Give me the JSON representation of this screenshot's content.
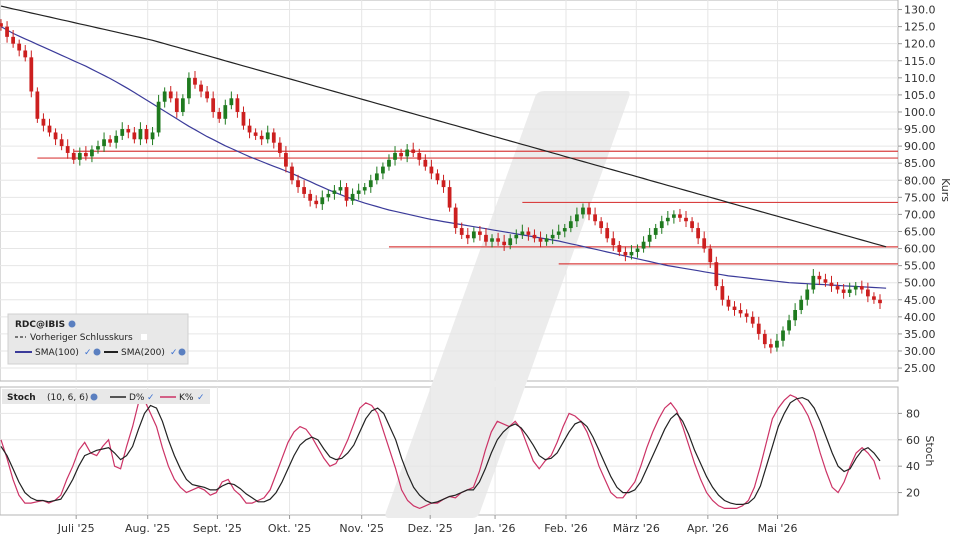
{
  "chart_data": [
    {
      "type": "candlestick",
      "ylabel": "Kurs",
      "ylim": [
        21.5,
        132.5
      ],
      "y_ticks": [
        "25.00",
        "30.00",
        "35.00",
        "40.00",
        "45.00",
        "50.00",
        "55.00",
        "60.00",
        "65.00",
        "70.00",
        "75.00",
        "80.00",
        "85.00",
        "90.00",
        "95.00",
        "100.0",
        "105.0",
        "110.0",
        "115.0",
        "120.0",
        "125.0",
        "130.0"
      ],
      "x_ticks": [
        "Juli '25",
        "Aug. '25",
        "Sept. '25",
        "Okt. '25",
        "Nov. '25",
        "Dez. '25",
        "Jan. '26",
        "Feb. '26",
        "März '26",
        "Apr. '26",
        "Mai '26"
      ],
      "x_tick_pos": [
        12.4,
        24.2,
        35.7,
        47.6,
        59.5,
        70.8,
        81.5,
        93.2,
        104.8,
        116.6,
        128.1
      ],
      "x_range": [
        0,
        145
      ],
      "grid": true,
      "colors": {
        "up": "#1f7a1f",
        "down": "#cc1f1f",
        "sma100": "#3b3b9a",
        "sma200": "#222222",
        "level": "#d94040",
        "stoch_d": "#222222",
        "stoch_k": "#cc3366"
      },
      "legend": {
        "symbol": "RDC@IBIS",
        "items": [
          "Vorheriger Schlusskurs",
          "SMA(100)",
          "SMA(200)"
        ]
      },
      "close": [
        125,
        122,
        120,
        118,
        116,
        106,
        98,
        96,
        94,
        92,
        90,
        88,
        86,
        88,
        87,
        89,
        90,
        92,
        91,
        93,
        95,
        94,
        92,
        95,
        92,
        94,
        103,
        106,
        104,
        100,
        104,
        110,
        108,
        106,
        104,
        100,
        98,
        102,
        104,
        100,
        96,
        94,
        93,
        92,
        94,
        91,
        88,
        84,
        80,
        78,
        76,
        74,
        73,
        75,
        76,
        77,
        78,
        74,
        76,
        77,
        78,
        80,
        82,
        84,
        86,
        88,
        87,
        89,
        88,
        86,
        84,
        82,
        80,
        78,
        72,
        66,
        64,
        63,
        65,
        64,
        62,
        63,
        62,
        61,
        63,
        64,
        65,
        64,
        63,
        62,
        63,
        64,
        65,
        66,
        68,
        70,
        72,
        70,
        68,
        66,
        63,
        61,
        59,
        58,
        59,
        60,
        62,
        64,
        66,
        68,
        69,
        70,
        69,
        68,
        66,
        63,
        60,
        56,
        49,
        45,
        43,
        42,
        41,
        40,
        38,
        35,
        32,
        31,
        33,
        36,
        39,
        42,
        45,
        48,
        52,
        51,
        50,
        49,
        48,
        47,
        48,
        49,
        48,
        46,
        45,
        44
      ],
      "sma100": [
        125.0,
        124.0,
        123.0,
        122.2,
        121.4,
        120.6,
        119.8,
        119.0,
        118.2,
        117.4,
        116.6,
        115.8,
        115.0,
        114.2,
        113.4,
        112.5,
        111.6,
        110.7,
        109.8,
        108.8,
        107.8,
        106.8,
        105.7,
        104.6,
        103.5,
        102.4,
        101.3,
        100.2,
        99.1,
        98.0,
        96.9,
        95.8,
        94.8,
        93.8,
        92.8,
        91.9,
        91.0,
        90.1,
        89.3,
        88.5,
        87.7,
        86.9,
        86.2,
        85.5,
        84.8,
        84.1,
        83.4,
        82.7,
        82.0,
        81.2,
        80.4,
        79.6,
        78.8,
        78.0,
        77.2,
        76.5,
        75.8,
        75.1,
        74.5,
        73.9,
        73.3,
        72.8,
        72.3,
        71.8,
        71.3,
        70.9,
        70.5,
        70.1,
        69.7,
        69.3,
        68.9,
        68.5,
        68.2,
        67.9,
        67.6,
        67.3,
        67.0,
        66.7,
        66.4,
        66.1,
        65.8,
        65.5,
        65.2,
        64.9,
        64.6,
        64.3,
        64.0,
        63.7,
        63.4,
        63.1,
        62.8,
        62.5,
        62.2,
        61.8,
        61.4,
        61.0,
        60.6,
        60.2,
        59.8,
        59.4,
        59.0,
        58.6,
        58.2,
        57.8,
        57.4,
        57.0,
        56.6,
        56.2,
        55.8,
        55.4,
        55.0,
        54.7,
        54.4,
        54.1,
        53.8,
        53.5,
        53.2,
        52.9,
        52.6,
        52.3,
        52.0,
        51.8,
        51.6,
        51.4,
        51.2,
        51.0,
        50.8,
        50.6,
        50.4,
        50.2,
        50.0,
        49.9,
        49.8,
        49.7,
        49.6,
        49.5,
        49.4,
        49.3,
        49.2,
        49.1,
        49.0,
        48.9,
        48.8,
        48.7,
        48.6,
        48.5,
        48.4
      ],
      "sma200": [
        131.0,
        130.6,
        130.2,
        129.8,
        129.4,
        129.0,
        128.6,
        128.2,
        127.8,
        127.4,
        127.0,
        126.6,
        126.2,
        125.8,
        125.4,
        125.0,
        124.6,
        124.2,
        123.8,
        123.4,
        123.0,
        122.6,
        122.2,
        121.8,
        121.4,
        121.0,
        120.5,
        120.0,
        119.5,
        119.0,
        118.5,
        118.0,
        117.5,
        117.0,
        116.5,
        116.0,
        115.5,
        115.0,
        114.5,
        114.0,
        113.5,
        113.0,
        112.5,
        112.0,
        111.5,
        111.0,
        110.5,
        110.0,
        109.5,
        109.0,
        108.5,
        108.0,
        107.5,
        107.0,
        106.5,
        106.0,
        105.5,
        105.0,
        104.5,
        104.0,
        103.5,
        103.0,
        102.5,
        102.0,
        101.5,
        101.0,
        100.5,
        100.0,
        99.5,
        99.0,
        98.5,
        98.0,
        97.5,
        97.0,
        96.5,
        96.0,
        95.5,
        95.0,
        94.5,
        94.0,
        93.5,
        93.0,
        92.5,
        92.0,
        91.5,
        91.0,
        90.5,
        90.0,
        89.5,
        89.0,
        88.5,
        88.0,
        87.5,
        87.0,
        86.5,
        86.0,
        85.5,
        85.0,
        84.5,
        84.0,
        83.5,
        83.0,
        82.5,
        82.0,
        81.5,
        81.0,
        80.5,
        80.0,
        79.5,
        79.0,
        78.5,
        78.0,
        77.5,
        77.0,
        76.5,
        76.0,
        75.5,
        75.0,
        74.5,
        74.0,
        73.5,
        73.0,
        72.5,
        72.0,
        71.5,
        71.0,
        70.5,
        70.0,
        69.5,
        69.0,
        68.5,
        68.0,
        67.5,
        67.0,
        66.5,
        66.0,
        65.5,
        65.0,
        64.5,
        64.0,
        63.5,
        63.0,
        62.5,
        62.0,
        61.5,
        61.0,
        60.5
      ],
      "levels": [
        {
          "value": 88.5,
          "x_start": 12
        },
        {
          "value": 86.5,
          "x_start": 6
        },
        {
          "value": 73.5,
          "x_start": 86
        },
        {
          "value": 60.5,
          "x_start": 64
        },
        {
          "value": 55.5,
          "x_start": 92
        }
      ]
    },
    {
      "type": "line",
      "title": "Stoch",
      "params": "(10, 6, 6)",
      "ylabel": "Stoch",
      "ylim": [
        3,
        100
      ],
      "y_ticks": [
        "20",
        "40",
        "60",
        "80"
      ],
      "series": [
        {
          "name": "D%",
          "values": [
            55,
            48,
            38,
            28,
            20,
            16,
            14,
            14,
            13,
            14,
            15,
            22,
            30,
            40,
            48,
            50,
            52,
            53,
            54,
            50,
            45,
            48,
            55,
            68,
            80,
            86,
            84,
            74,
            60,
            48,
            38,
            30,
            26,
            25,
            24,
            22,
            22,
            25,
            27,
            26,
            23,
            19,
            16,
            13,
            13,
            15,
            20,
            28,
            38,
            48,
            56,
            60,
            62,
            60,
            53,
            47,
            45,
            46,
            50,
            56,
            66,
            76,
            82,
            84,
            80,
            70,
            60,
            46,
            34,
            24,
            18,
            14,
            12,
            13,
            15,
            17,
            18,
            20,
            22,
            22,
            28,
            38,
            50,
            60,
            66,
            70,
            72,
            69,
            63,
            56,
            48,
            45,
            46,
            50,
            58,
            66,
            72,
            74,
            70,
            62,
            52,
            42,
            32,
            24,
            20,
            20,
            22,
            28,
            38,
            48,
            58,
            68,
            76,
            80,
            74,
            64,
            52,
            42,
            32,
            24,
            18,
            14,
            12,
            11,
            11,
            12,
            16,
            25,
            40,
            55,
            70,
            80,
            88,
            91,
            92,
            90,
            84,
            74,
            62,
            50,
            40,
            36,
            38,
            46,
            52,
            54,
            50,
            44
          ]
        },
        {
          "name": "K%",
          "values": [
            60,
            46,
            30,
            18,
            12,
            12,
            13,
            14,
            12,
            14,
            18,
            30,
            40,
            52,
            58,
            50,
            48,
            55,
            60,
            40,
            38,
            55,
            70,
            88,
            90,
            80,
            70,
            54,
            40,
            30,
            24,
            20,
            22,
            24,
            22,
            18,
            20,
            28,
            30,
            22,
            18,
            12,
            12,
            14,
            16,
            22,
            34,
            46,
            58,
            66,
            70,
            68,
            62,
            54,
            46,
            40,
            42,
            50,
            60,
            72,
            84,
            88,
            86,
            80,
            66,
            52,
            38,
            22,
            14,
            10,
            8,
            10,
            12,
            12,
            15,
            17,
            16,
            20,
            22,
            24,
            36,
            52,
            66,
            74,
            72,
            70,
            74,
            68,
            56,
            44,
            38,
            44,
            48,
            58,
            70,
            80,
            78,
            74,
            66,
            54,
            40,
            30,
            20,
            16,
            16,
            22,
            28,
            40,
            54,
            66,
            76,
            84,
            88,
            82,
            70,
            56,
            42,
            30,
            20,
            14,
            10,
            8,
            8,
            8,
            10,
            14,
            24,
            40,
            58,
            76,
            84,
            90,
            94,
            92,
            86,
            78,
            66,
            50,
            36,
            24,
            20,
            28,
            40,
            50,
            54,
            50,
            44,
            30
          ]
        }
      ]
    }
  ]
}
